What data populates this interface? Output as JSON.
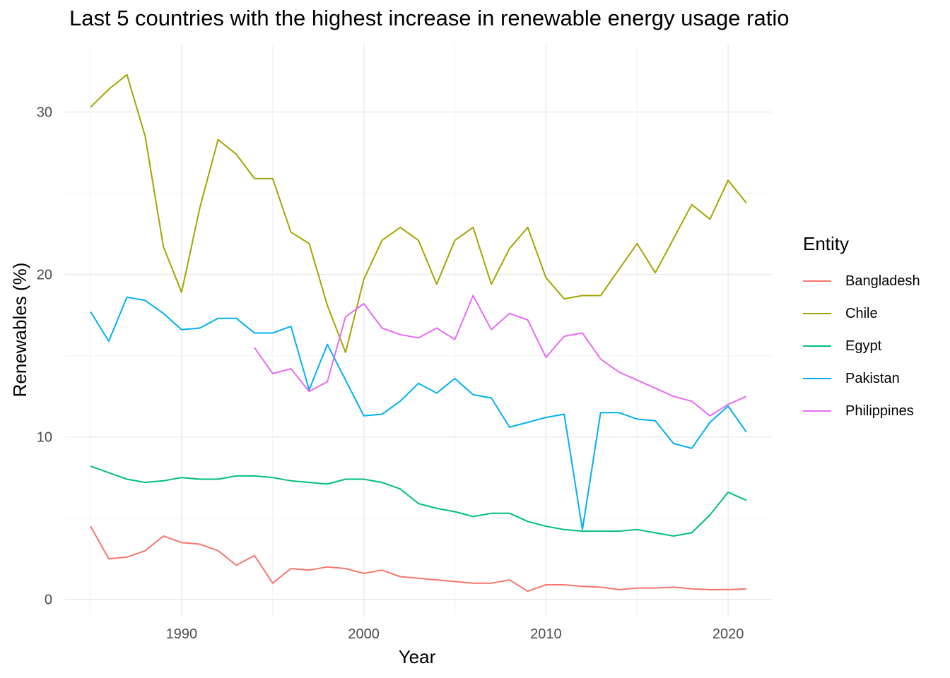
{
  "chart_data": {
    "type": "line",
    "title": "Last 5 countries with the highest increase in renewable energy usage ratio",
    "xlabel": "Year",
    "ylabel": "Renewables (%)",
    "xlim": [
      1983.6,
      2022.4
    ],
    "ylim": [
      -1.1,
      34.2
    ],
    "x_ticks": [
      1990,
      2000,
      2010,
      2020
    ],
    "y_ticks": [
      0,
      10,
      20,
      30
    ],
    "grid": true,
    "legend": {
      "title": "Entity",
      "placement": "right"
    },
    "series": [
      {
        "name": "Bangladesh",
        "color": "#F8766D",
        "x": [
          1985,
          1986,
          1987,
          1988,
          1989,
          1990,
          1991,
          1992,
          1993,
          1994,
          1995,
          1996,
          1997,
          1998,
          1999,
          2000,
          2001,
          2002,
          2003,
          2004,
          2005,
          2006,
          2007,
          2008,
          2009,
          2010,
          2011,
          2012,
          2013,
          2014,
          2015,
          2016,
          2017,
          2018,
          2019,
          2020,
          2021
        ],
        "y": [
          4.5,
          2.5,
          2.6,
          3.0,
          3.9,
          3.5,
          3.4,
          3.0,
          2.1,
          2.7,
          1.0,
          1.9,
          1.8,
          2.0,
          1.9,
          1.6,
          1.8,
          1.4,
          1.3,
          1.2,
          1.1,
          1.0,
          1.0,
          1.2,
          0.5,
          0.9,
          0.9,
          0.8,
          0.75,
          0.6,
          0.7,
          0.7,
          0.75,
          0.65,
          0.6,
          0.6,
          0.65
        ]
      },
      {
        "name": "Chile",
        "color": "#A3A500",
        "x": [
          1985,
          1986,
          1987,
          1988,
          1989,
          1990,
          1991,
          1992,
          1993,
          1994,
          1995,
          1996,
          1997,
          1998,
          1999,
          2000,
          2001,
          2002,
          2003,
          2004,
          2005,
          2006,
          2007,
          2008,
          2009,
          2010,
          2011,
          2012,
          2013,
          2014,
          2015,
          2016,
          2017,
          2018,
          2019,
          2020,
          2021
        ],
        "y": [
          30.3,
          31.4,
          32.3,
          28.5,
          21.7,
          18.9,
          24.1,
          28.3,
          27.4,
          25.9,
          25.9,
          22.6,
          21.9,
          18.1,
          15.2,
          19.7,
          22.1,
          22.9,
          22.1,
          19.4,
          22.1,
          22.9,
          19.4,
          21.6,
          22.9,
          19.8,
          18.5,
          18.7,
          18.7,
          20.3,
          21.9,
          20.1,
          22.2,
          24.3,
          23.4,
          25.8,
          24.4
        ]
      },
      {
        "name": "Egypt",
        "color": "#00BF7D",
        "x": [
          1985,
          1986,
          1987,
          1988,
          1989,
          1990,
          1991,
          1992,
          1993,
          1994,
          1995,
          1996,
          1997,
          1998,
          1999,
          2000,
          2001,
          2002,
          2003,
          2004,
          2005,
          2006,
          2007,
          2008,
          2009,
          2010,
          2011,
          2012,
          2013,
          2014,
          2015,
          2016,
          2017,
          2018,
          2019,
          2020,
          2021
        ],
        "y": [
          8.2,
          7.8,
          7.4,
          7.2,
          7.3,
          7.5,
          7.4,
          7.4,
          7.6,
          7.6,
          7.5,
          7.3,
          7.2,
          7.1,
          7.4,
          7.4,
          7.2,
          6.8,
          5.9,
          5.6,
          5.4,
          5.1,
          5.3,
          5.3,
          4.8,
          4.5,
          4.3,
          4.2,
          4.2,
          4.2,
          4.3,
          4.1,
          3.9,
          4.1,
          5.2,
          6.6,
          6.1
        ]
      },
      {
        "name": "Pakistan",
        "color": "#00B0F6",
        "x": [
          1985,
          1986,
          1987,
          1988,
          1989,
          1990,
          1991,
          1992,
          1993,
          1994,
          1995,
          1996,
          1997,
          1998,
          1999,
          2000,
          2001,
          2002,
          2003,
          2004,
          2005,
          2006,
          2007,
          2008,
          2009,
          2010,
          2011,
          2012,
          2013,
          2014,
          2015,
          2016,
          2017,
          2018,
          2019,
          2020,
          2021
        ],
        "y": [
          17.7,
          15.9,
          18.6,
          18.4,
          17.6,
          16.6,
          16.7,
          17.3,
          17.3,
          16.4,
          16.4,
          16.8,
          12.9,
          15.7,
          13.5,
          11.3,
          11.4,
          12.2,
          13.3,
          12.7,
          13.6,
          12.6,
          12.4,
          10.6,
          10.9,
          11.2,
          11.4,
          4.3,
          11.5,
          11.5,
          11.1,
          11.0,
          9.6,
          9.3,
          10.9,
          11.9,
          10.3
        ]
      },
      {
        "name": "Philippines",
        "color": "#E76BF3",
        "x": [
          1994,
          1995,
          1996,
          1997,
          1998,
          1999,
          2000,
          2001,
          2002,
          2003,
          2004,
          2005,
          2006,
          2007,
          2008,
          2009,
          2010,
          2011,
          2012,
          2013,
          2014,
          2015,
          2016,
          2017,
          2018,
          2019,
          2020,
          2021
        ],
        "y": [
          15.5,
          13.9,
          14.2,
          12.8,
          13.4,
          17.4,
          18.2,
          16.7,
          16.3,
          16.1,
          16.7,
          16.0,
          18.7,
          16.6,
          17.6,
          17.2,
          14.9,
          16.2,
          16.4,
          14.8,
          14.0,
          13.5,
          13.0,
          12.5,
          12.2,
          11.3,
          12.0,
          12.5
        ]
      }
    ]
  }
}
